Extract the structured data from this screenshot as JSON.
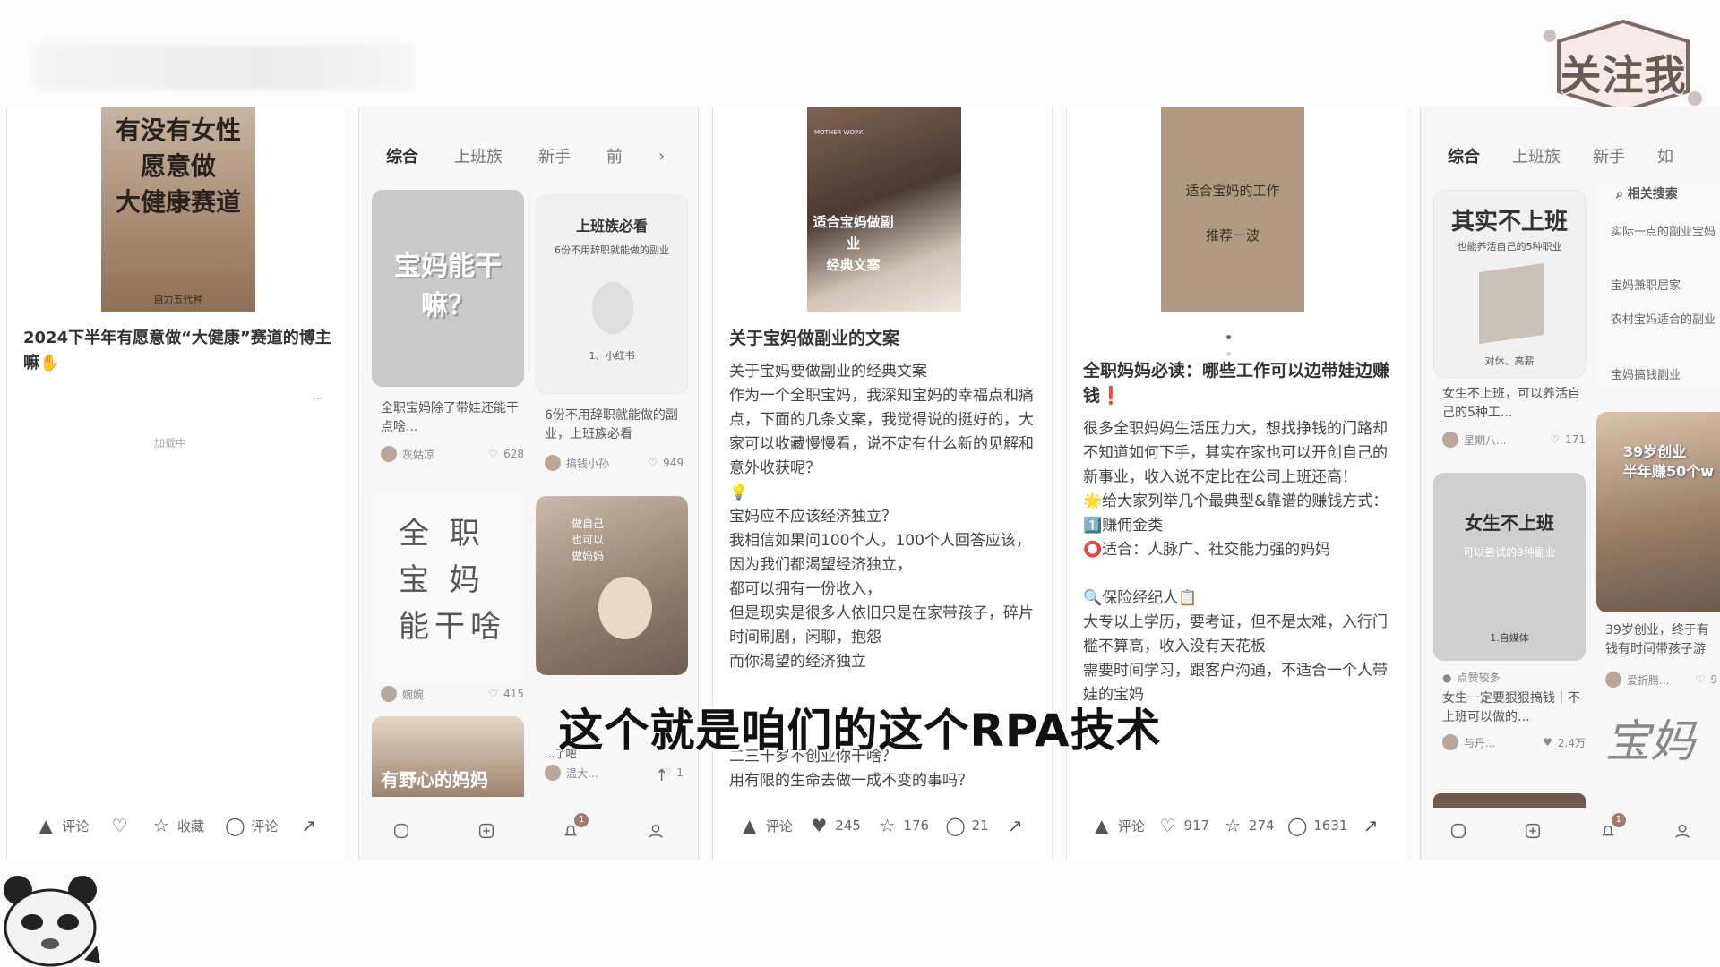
{
  "follow_badge": {
    "text": "关注我"
  },
  "subtitle": "这个就是咱们的这个RPA技术",
  "panel1": {
    "cover_text": [
      "有没有女性",
      "愿意做",
      "大健康赛道"
    ],
    "cover_small": "自力五代种",
    "title": "2024下半年有愿意做“大健康”赛道的博主嘛✋",
    "more": "···",
    "loading": "加载中",
    "actions": [
      "评论",
      "",
      "收藏",
      "评论",
      ""
    ]
  },
  "panel2": {
    "tabs": [
      "综合",
      "上班族",
      "新手",
      "前"
    ],
    "cards": [
      {
        "cover": "宝妈能干嘛？",
        "caption": "全职宝妈除了带娃还能干点啥...",
        "author": "灰姑凉",
        "likes": "628"
      },
      {
        "cover_title": "上班族必看",
        "cover_sub": "6份不用辞职就能做的副业",
        "cover_tag": "1、小红书",
        "caption": "6份不用辞职就能做的副业，上班族必看",
        "author": "搞钱小孙",
        "likes": "949"
      },
      {
        "cover": [
          "全 职",
          "宝 妈",
          "能干啥"
        ],
        "author": "婉婉",
        "likes": "415"
      },
      {
        "cover": "做自己\n也可以\n做妈妈",
        "caption": "...了吧",
        "author": "温大...",
        "likes": "1"
      },
      {
        "cover": "有野心的妈妈"
      }
    ],
    "nav": [
      "home",
      "add",
      "bell",
      "me"
    ],
    "bell_badge": "1"
  },
  "panel3": {
    "cover_text": [
      "适合宝妈做副业",
      "经典文案"
    ],
    "cover_small": "MOTHER WORK",
    "title": "关于宝妈做副业的文案",
    "body": [
      "关于宝妈要做副业的经典文案",
      "作为一个全职宝妈，我深知宝妈的幸福点和痛点，下面的几条文案，我觉得说的挺好的，大家可以收藏慢慢看，说不定有什么新的见解和意外收获呢？",
      "💡",
      "宝妈应不应该经济独立？",
      "我相信如果问100个人，100个人回答应该，",
      "因为我们都渴望经济独立，",
      "都可以拥有一份收入，",
      "但是现实是很多人依旧只是在家带孩子，碎片时间刷剧，闲聊，抱怨",
      "而你渴望的经济独立",
      "",
      "二三十岁不创业你干啥？",
      "用有限的生命去做一成不变的事吗？"
    ],
    "actions": {
      "comment": "评论",
      "likes": "245",
      "stars": "176",
      "comments": "21"
    }
  },
  "panel4": {
    "cover_text": [
      "适合宝妈的工作",
      "推荐一波"
    ],
    "title": "全职妈妈必读：哪些工作可以边带娃边赚钱❗",
    "body": [
      "很多全职妈妈生活压力大，想找挣钱的门路却不知道如何下手，其实在家也可以开创自己的新事业，收入说不定比在公司上班还高！",
      "🌟给大家列举几个最典型&靠谱的赚钱方式：",
      "1️⃣赚佣金类",
      "⭕适合：人脉广、社交能力强的妈妈",
      "",
      "🔍保险经纪人📋",
      "大专以上学历，要考证，但不是太难，入行门槛不算高，收入没有天花板",
      "需要时间学习，跟客户沟通，不适合一个人带娃的宝妈"
    ],
    "actions": {
      "comment": "评论",
      "likes": "917",
      "stars": "274",
      "comments": "1631"
    }
  },
  "panel5": {
    "tabs": [
      "综合",
      "上班族",
      "新手",
      "如"
    ],
    "search_heading": "相关搜索",
    "related": [
      "实际一点的副业宝妈",
      "宝妈兼职居家",
      "农村宝妈适合的副业",
      "宝妈搞钱副业"
    ],
    "cards": [
      {
        "cover_title": "其实不上班",
        "cover_sub": "也能养活自己的5种职业",
        "cover_tag": "对休、高薪",
        "caption": "女生不上班，可以养活自己的5种工...",
        "author": "星期八...",
        "likes": "171"
      },
      {
        "cover": "39岁创业\n半年赚50个w",
        "caption": "39岁创业，终于有钱有时间带孩子游",
        "author": "爱折腾...",
        "likes": "9"
      },
      {
        "cover_title": "女生不上班",
        "cover_sub": "可以尝试的9种副业",
        "cover_tag": "1.自媒体",
        "tag_line": "点赞较多",
        "caption": "女生一定要狠狠搞钱｜不上班可以做的...",
        "author": "与丹...",
        "likes": "2.4万"
      },
      {
        "cover": "宝妈"
      }
    ],
    "nav": [
      "home",
      "add",
      "bell",
      "me"
    ],
    "bell_badge": "1"
  }
}
